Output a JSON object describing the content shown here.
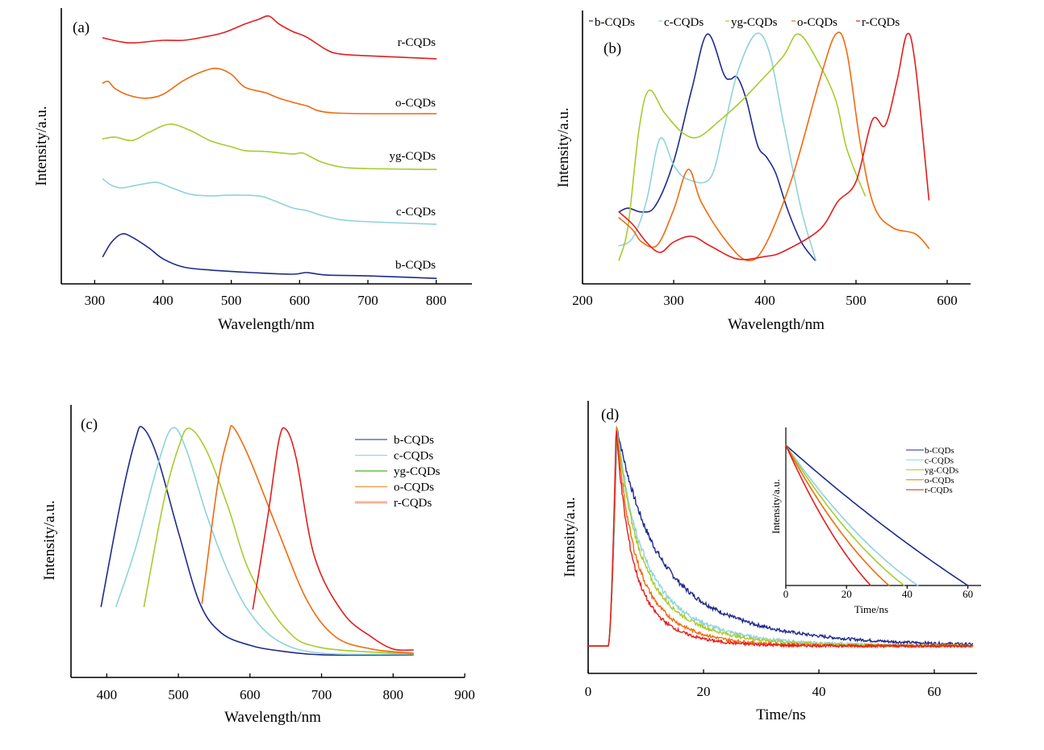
{
  "colors": {
    "b": "#1f2a8c",
    "c": "#8fd3da",
    "yg": "#a6cc2e",
    "o": "#f06a0e",
    "r": "#e31e1e",
    "legend_c_yg": "#6cbf4a",
    "legend_c_o": "#f0a050",
    "legend_c_r": "#f4b498"
  },
  "chart_data": [
    {
      "id": "a",
      "type": "line",
      "panel_label": "(a)",
      "title": "",
      "xlabel": "Wavelength/nm",
      "ylabel": "Intensity/a.u.",
      "xlim": [
        250,
        850
      ],
      "ylim": [
        0,
        1
      ],
      "xticks": [
        300,
        400,
        500,
        600,
        700,
        800
      ],
      "grid": false,
      "legend": "inline-right",
      "series": [
        {
          "key": "r",
          "name": "r-CQDs",
          "x": [
            312,
            340,
            360,
            400,
            430,
            460,
            490,
            520,
            540,
            555,
            570,
            590,
            610,
            640,
            660,
            700,
            800
          ],
          "y": [
            0.892,
            0.877,
            0.874,
            0.883,
            0.883,
            0.895,
            0.912,
            0.942,
            0.959,
            0.971,
            0.942,
            0.915,
            0.895,
            0.848,
            0.833,
            0.827,
            0.816
          ]
        },
        {
          "key": "o",
          "name": "o-CQDs",
          "x": [
            312,
            320,
            330,
            350,
            375,
            400,
            430,
            460,
            480,
            500,
            520,
            550,
            570,
            595,
            610,
            650,
            800
          ],
          "y": [
            0.728,
            0.734,
            0.708,
            0.684,
            0.673,
            0.687,
            0.737,
            0.772,
            0.781,
            0.76,
            0.713,
            0.693,
            0.673,
            0.655,
            0.646,
            0.62,
            0.617
          ]
        },
        {
          "key": "yg",
          "name": "yg-CQDs",
          "x": [
            312,
            330,
            355,
            380,
            410,
            440,
            470,
            500,
            520,
            550,
            590,
            605,
            630,
            660,
            700,
            800
          ],
          "y": [
            0.526,
            0.532,
            0.52,
            0.55,
            0.579,
            0.556,
            0.518,
            0.497,
            0.483,
            0.48,
            0.471,
            0.474,
            0.444,
            0.424,
            0.418,
            0.415
          ]
        },
        {
          "key": "c",
          "name": "c-CQDs",
          "x": [
            312,
            325,
            340,
            360,
            390,
            410,
            440,
            470,
            500,
            540,
            560,
            590,
            610,
            640,
            680,
            800
          ],
          "y": [
            0.38,
            0.357,
            0.348,
            0.357,
            0.368,
            0.351,
            0.325,
            0.319,
            0.322,
            0.319,
            0.304,
            0.275,
            0.266,
            0.243,
            0.228,
            0.216
          ]
        },
        {
          "key": "b",
          "name": "b-CQDs",
          "x": [
            312,
            325,
            340,
            355,
            380,
            400,
            430,
            470,
            530,
            590,
            610,
            640,
            700,
            800
          ],
          "y": [
            0.099,
            0.152,
            0.181,
            0.169,
            0.129,
            0.091,
            0.061,
            0.05,
            0.041,
            0.035,
            0.041,
            0.032,
            0.029,
            0.02
          ]
        }
      ]
    },
    {
      "id": "b",
      "type": "line",
      "panel_label": "(b)",
      "title": "",
      "xlabel": "Wavelength/nm",
      "ylabel": "Intensity/a.u.",
      "xlim": [
        200,
        625
      ],
      "ylim": [
        0,
        1
      ],
      "xticks": [
        200,
        300,
        400,
        500,
        600
      ],
      "grid": false,
      "legend": "top",
      "series": [
        {
          "key": "b",
          "name": "b-CQDs",
          "x": [
            240,
            250,
            265,
            280,
            300,
            320,
            337,
            355,
            362,
            370,
            380,
            392,
            402,
            412,
            425,
            440,
            455
          ],
          "y": [
            0.263,
            0.277,
            0.263,
            0.286,
            0.448,
            0.714,
            0.914,
            0.767,
            0.749,
            0.755,
            0.67,
            0.507,
            0.463,
            0.404,
            0.271,
            0.153,
            0.086
          ]
        },
        {
          "key": "c",
          "name": "c-CQDs",
          "x": [
            240,
            255,
            270,
            285,
            300,
            315,
            340,
            355,
            370,
            390,
            405,
            420,
            440,
            456
          ],
          "y": [
            0.139,
            0.168,
            0.301,
            0.531,
            0.434,
            0.383,
            0.386,
            0.566,
            0.773,
            0.914,
            0.847,
            0.596,
            0.271,
            0.086
          ]
        },
        {
          "key": "yg",
          "name": "yg-CQDs",
          "x": [
            240,
            250,
            262,
            273,
            290,
            310,
            327,
            350,
            370,
            390,
            420,
            437,
            460,
            478,
            490,
            510
          ],
          "y": [
            0.086,
            0.212,
            0.566,
            0.708,
            0.625,
            0.552,
            0.537,
            0.596,
            0.655,
            0.723,
            0.832,
            0.914,
            0.802,
            0.67,
            0.493,
            0.322
          ]
        },
        {
          "key": "o",
          "name": "o-CQDs",
          "x": [
            240,
            255,
            265,
            282,
            300,
            316,
            330,
            355,
            380,
            400,
            430,
            460,
            478,
            490,
            505,
            520,
            540,
            565,
            580
          ],
          "y": [
            0.242,
            0.198,
            0.153,
            0.142,
            0.271,
            0.419,
            0.301,
            0.168,
            0.086,
            0.139,
            0.389,
            0.743,
            0.914,
            0.847,
            0.507,
            0.283,
            0.206,
            0.183,
            0.13
          ]
        },
        {
          "key": "r",
          "name": "r-CQDs",
          "x": [
            240,
            255,
            270,
            285,
            300,
            320,
            340,
            370,
            400,
            420,
            460,
            480,
            500,
            518,
            532,
            545,
            556,
            565,
            580
          ],
          "y": [
            0.263,
            0.218,
            0.153,
            0.115,
            0.153,
            0.174,
            0.139,
            0.091,
            0.1,
            0.118,
            0.198,
            0.301,
            0.374,
            0.6,
            0.58,
            0.743,
            0.914,
            0.802,
            0.307
          ]
        }
      ]
    },
    {
      "id": "c",
      "type": "line",
      "panel_label": "(c)",
      "title": "",
      "xlabel": "Wavelength/nm",
      "ylabel": "Intensity/a.u.",
      "xlim": [
        350,
        900
      ],
      "ylim": [
        0,
        1
      ],
      "xticks": [
        400,
        500,
        600,
        700,
        800,
        900
      ],
      "grid": false,
      "legend": "top-right",
      "series": [
        {
          "key": "b",
          "name": "b-CQDs",
          "x": [
            392,
            420,
            440,
            450,
            470,
            500,
            530,
            560,
            600,
            640,
            700,
            828
          ],
          "y": [
            0.26,
            0.651,
            0.873,
            0.917,
            0.814,
            0.533,
            0.272,
            0.163,
            0.118,
            0.098,
            0.083,
            0.083
          ]
        },
        {
          "key": "c",
          "name": "c-CQDs",
          "x": [
            413,
            440,
            470,
            491,
            510,
            540,
            570,
            600,
            640,
            700,
            828
          ],
          "y": [
            0.26,
            0.473,
            0.769,
            0.914,
            0.843,
            0.592,
            0.385,
            0.237,
            0.133,
            0.089,
            0.086
          ]
        },
        {
          "key": "yg",
          "name": "yg-CQDs",
          "x": [
            452,
            480,
            500,
            515,
            540,
            570,
            600,
            650,
            700,
            828
          ],
          "y": [
            0.26,
            0.651,
            0.843,
            0.914,
            0.828,
            0.621,
            0.385,
            0.178,
            0.109,
            0.086
          ]
        },
        {
          "key": "o",
          "name": "o-CQDs",
          "x": [
            533,
            555,
            570,
            577,
            600,
            640,
            680,
            720,
            770,
            828
          ],
          "y": [
            0.272,
            0.71,
            0.888,
            0.917,
            0.799,
            0.533,
            0.281,
            0.148,
            0.104,
            0.089
          ]
        },
        {
          "key": "r",
          "name": "r-CQDs",
          "x": [
            604,
            625,
            640,
            650,
            665,
            690,
            730,
            770,
            800,
            828
          ],
          "y": [
            0.251,
            0.592,
            0.864,
            0.911,
            0.799,
            0.444,
            0.237,
            0.148,
            0.104,
            0.101
          ]
        }
      ]
    },
    {
      "id": "d",
      "type": "line",
      "panel_label": "(d)",
      "title": "",
      "xlabel": "Time/ns",
      "ylabel": "Intensity/a.u.",
      "xlim": [
        0,
        67
      ],
      "ylim": [
        0,
        1
      ],
      "xticks": [
        0,
        20,
        40,
        60
      ],
      "grid": false,
      "legend": "none",
      "rise_start_ns": 3.5,
      "peak_ns": 5,
      "baseline": 0.1,
      "series": [
        {
          "key": "b",
          "name": "b-CQDs",
          "decay_tau_ns": 9.5
        },
        {
          "key": "c",
          "name": "c-CQDs",
          "decay_tau_ns": 6.2
        },
        {
          "key": "yg",
          "name": "yg-CQDs",
          "decay_tau_ns": 5.6
        },
        {
          "key": "o",
          "name": "o-CQDs",
          "decay_tau_ns": 4.4
        },
        {
          "key": "r",
          "name": "r-CQDs",
          "decay_tau_ns": 3.6
        }
      ],
      "inset": {
        "type": "line",
        "xlabel": "Time/ns",
        "ylabel": "Intensity/a.u.",
        "xlim": [
          0,
          65
        ],
        "ylim": [
          0,
          1
        ],
        "xticks": [
          0,
          20,
          40,
          60
        ],
        "legend": "top-right",
        "series": [
          {
            "key": "b",
            "name": "b-CQDs",
            "end_ns": 60
          },
          {
            "key": "c",
            "name": "c-CQDs",
            "end_ns": 43.5
          },
          {
            "key": "yg",
            "name": "yg-CQDs",
            "end_ns": 39
          },
          {
            "key": "o",
            "name": "o-CQDs",
            "end_ns": 34
          },
          {
            "key": "r",
            "name": "r-CQDs",
            "end_ns": 28
          }
        ]
      }
    }
  ]
}
